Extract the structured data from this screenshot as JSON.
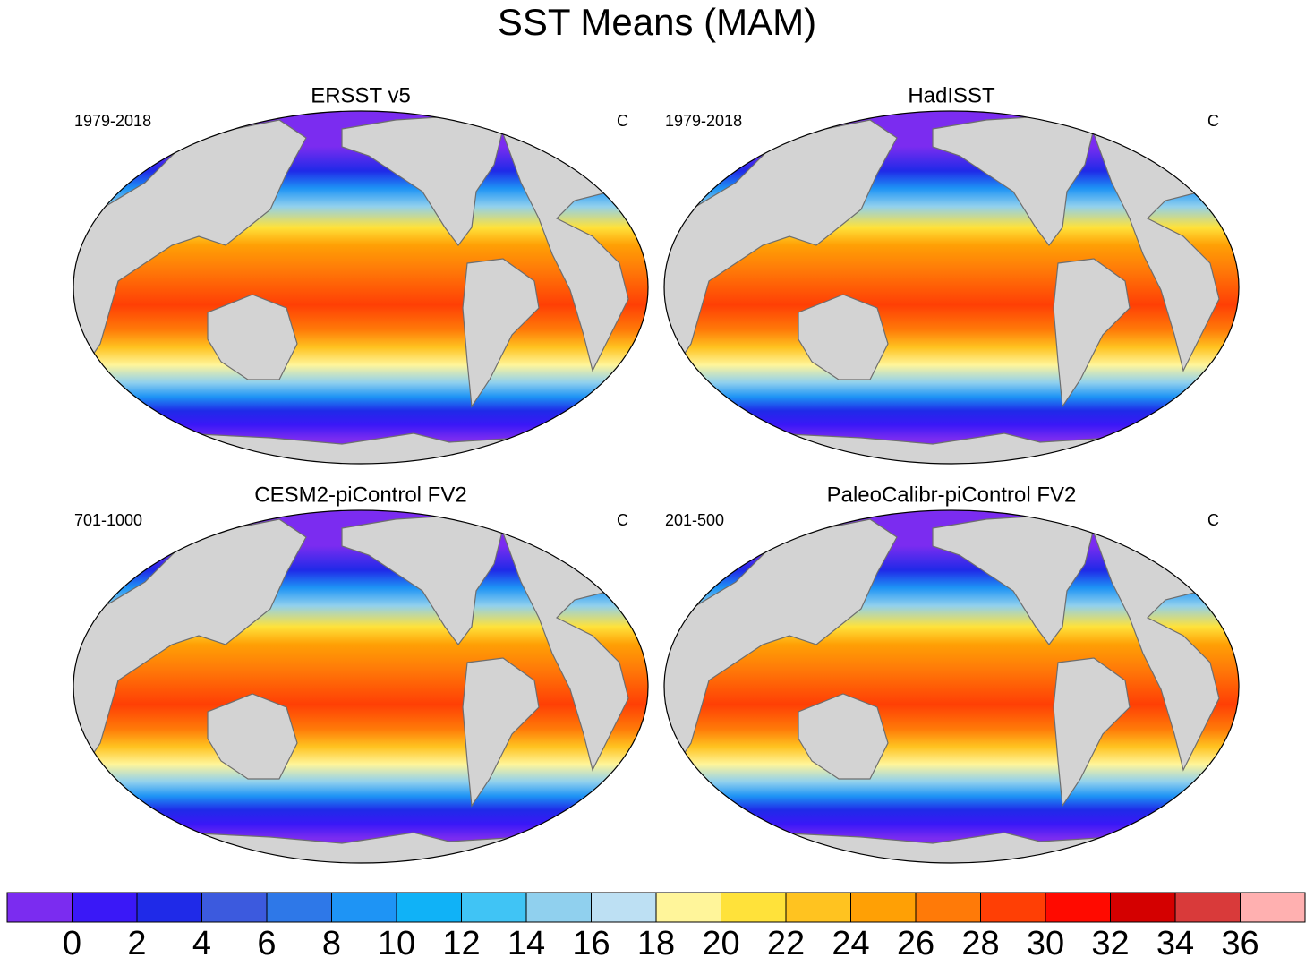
{
  "title": "SST Means (MAM)",
  "units": "C",
  "panels": [
    {
      "title": "ERSST v5",
      "period": "1979-2018",
      "units": "C"
    },
    {
      "title": "HadISST",
      "period": "1979-2018",
      "units": "C"
    },
    {
      "title": "CESM2-piControl FV2",
      "period": "701-1000",
      "units": "C"
    },
    {
      "title": "PaleoCalibr-piControl FV2",
      "period": "201-500",
      "units": "C"
    }
  ],
  "colorbar": {
    "levels": [
      0,
      2,
      4,
      6,
      8,
      10,
      12,
      14,
      16,
      18,
      20,
      22,
      24,
      26,
      28,
      30,
      32,
      34,
      36
    ],
    "colors": [
      "#7b2cf0",
      "#3a18f7",
      "#1f2ae8",
      "#3c5ade",
      "#2e78e8",
      "#1e94f5",
      "#10b2f7",
      "#40c4f5",
      "#90d0ee",
      "#bde0f3",
      "#fff59a",
      "#ffe23a",
      "#ffc320",
      "#ffa005",
      "#ff7a08",
      "#ff3f05",
      "#ff0a00",
      "#d40000",
      "#d93a3a",
      "#ffb0b0"
    ]
  }
}
